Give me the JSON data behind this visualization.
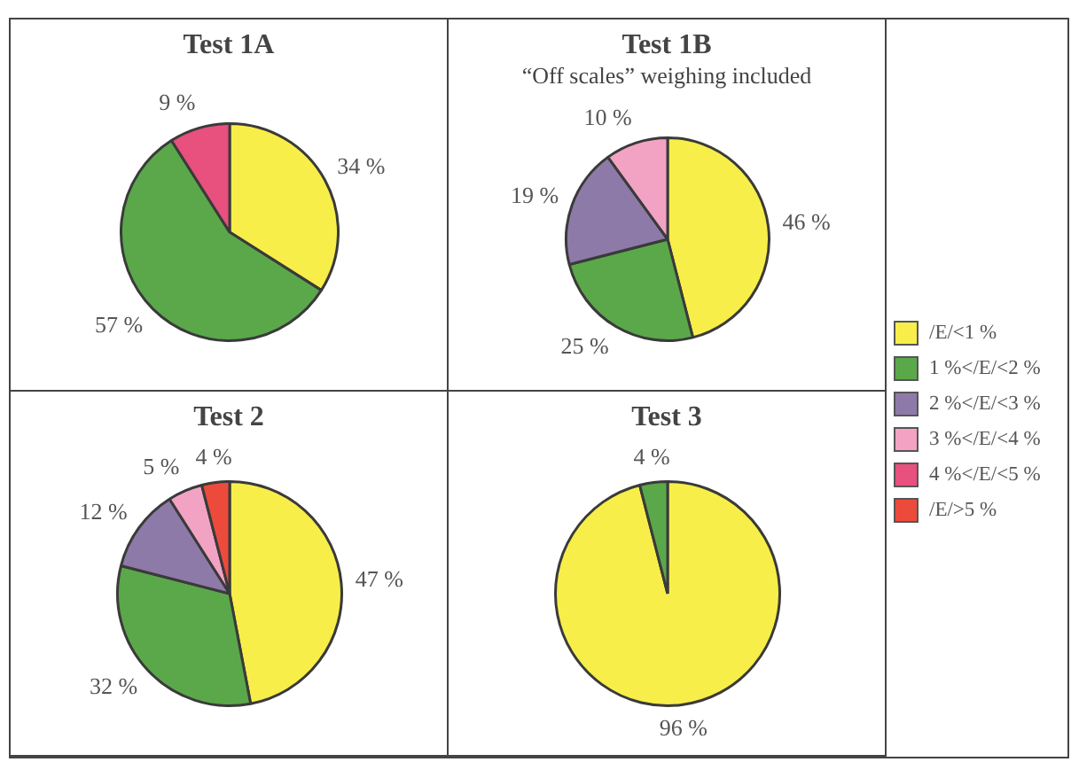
{
  "chart_data": [
    {
      "type": "pie",
      "title": "Test 1A",
      "categories": [
        "/E/<1 %",
        "1 %</E/<2 %",
        "2 %</E/<3 %",
        "3 %</E/<4 %",
        "4 %</E/<5 %",
        "/E/>5 %"
      ],
      "values": [
        34,
        57,
        0,
        0,
        9,
        0
      ],
      "value_labels": [
        "34 %",
        "57 %",
        null,
        null,
        "9 %",
        null
      ],
      "colors": [
        "#f7ee4a",
        "#5aa84a",
        "#8e7aa8",
        "#f2a3c4",
        "#e8507e",
        "#ec4b3c"
      ],
      "legend": "right"
    },
    {
      "type": "pie",
      "title": "Test 1B",
      "subtitle": "“Off scales” weighing included",
      "categories": [
        null,
        null,
        null,
        null,
        null,
        null
      ],
      "values": [
        46,
        25,
        19,
        10,
        0,
        0
      ],
      "value_labels": [
        "46 %",
        "25 %",
        "19 %",
        "10 %",
        null,
        null
      ],
      "colors": [
        "#f7ee4a",
        "#5aa84a",
        "#8e7aa8",
        "#f2a3c4",
        "#e8507e",
        "#ec4b3c"
      ]
    },
    {
      "type": "pie",
      "title": "Test 2",
      "categories": [
        null,
        null,
        null,
        null,
        null,
        null
      ],
      "values": [
        47,
        32,
        12,
        5,
        0,
        4
      ],
      "value_labels": [
        "47 %",
        "32 %",
        "12 %",
        "5 %",
        null,
        "4 %"
      ],
      "colors": [
        "#f7ee4a",
        "#5aa84a",
        "#8e7aa8",
        "#f2a3c4",
        "#e8507e",
        "#ec4b3c"
      ]
    },
    {
      "type": "pie",
      "title": "Test 3",
      "categories": [
        null,
        null,
        null,
        null,
        null,
        null
      ],
      "values": [
        96,
        4,
        0,
        0,
        0,
        0
      ],
      "value_labels": [
        "96 %",
        "4 %",
        null,
        null,
        null,
        null
      ],
      "colors": [
        "#f7ee4a",
        "#5aa84a",
        "#8e7aa8",
        "#f2a3c4",
        "#e8507e",
        "#ec4b3c"
      ]
    }
  ]
}
